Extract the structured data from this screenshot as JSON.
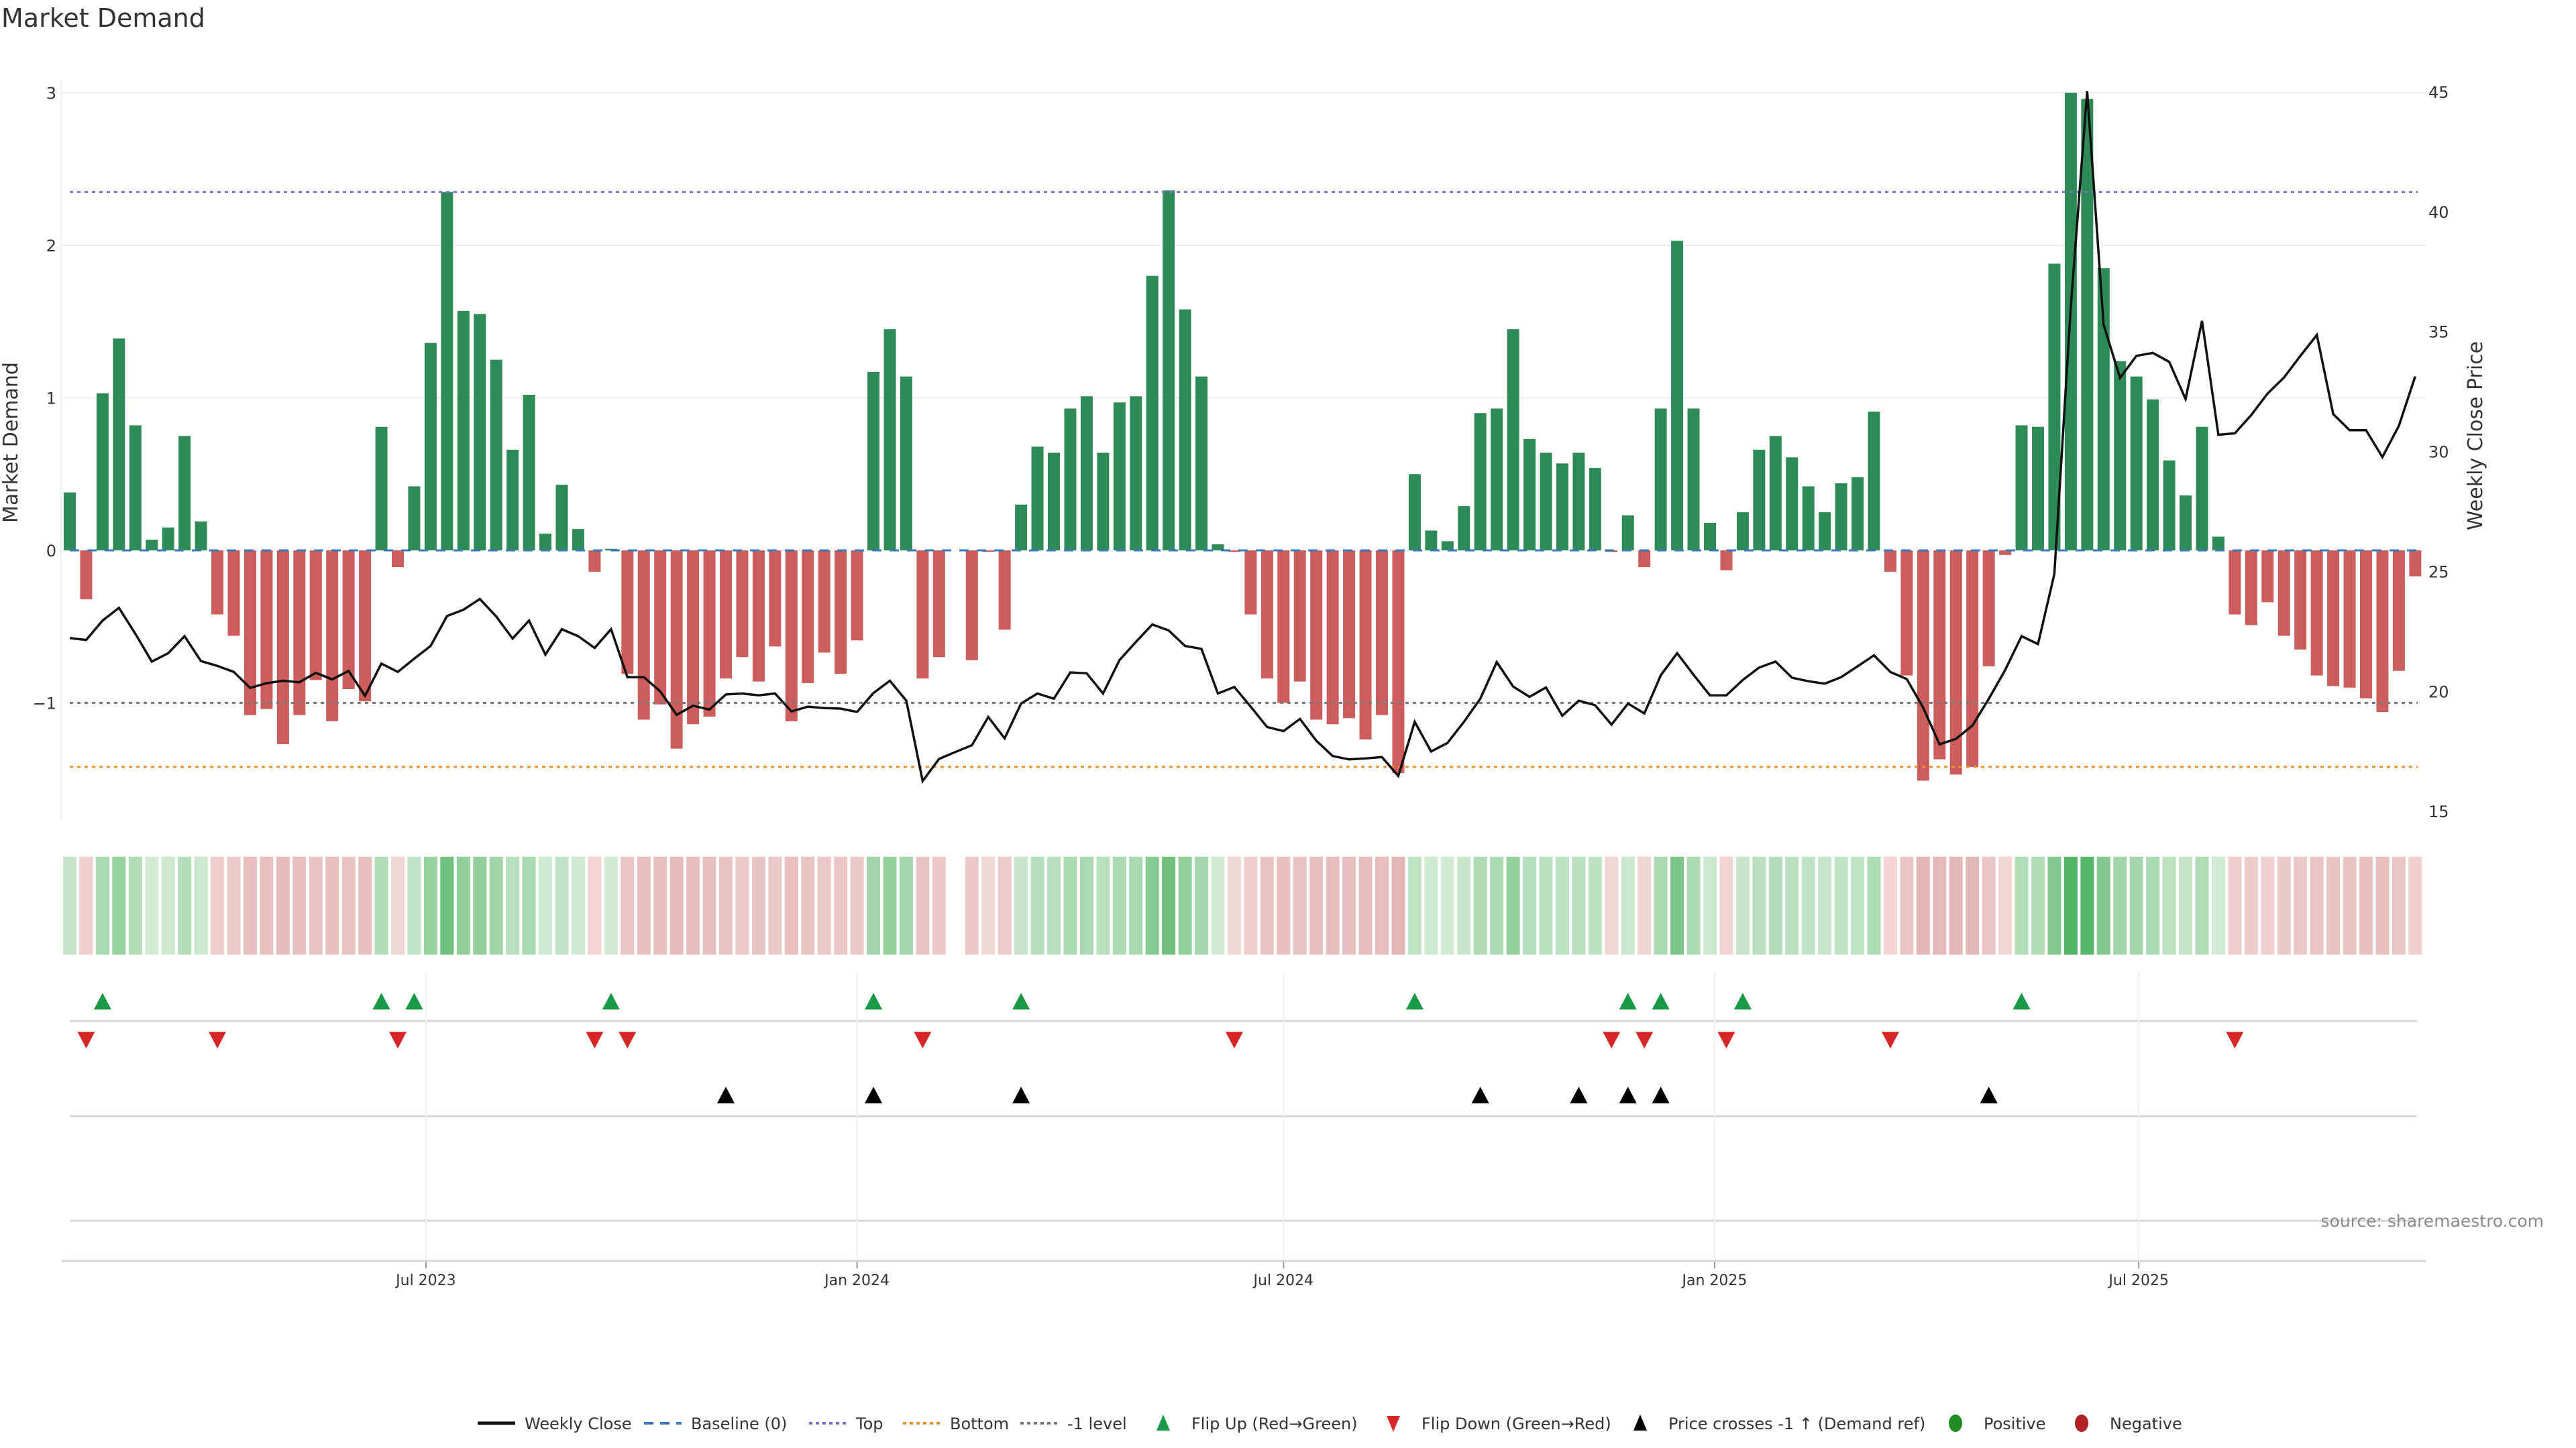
{
  "chart_data": {
    "type": "bar",
    "title": "Market Demand",
    "ylabel": "Market Demand",
    "y2label": "Weekly Close Price",
    "ylim": [
      -1.7,
      3.0
    ],
    "y2lim": [
      15,
      45
    ],
    "yticks": [
      -1,
      0,
      1,
      2,
      3
    ],
    "yticklabels": [
      "−1",
      "0",
      "1",
      "2",
      "3"
    ],
    "y2ticks": [
      15,
      20,
      25,
      30,
      35,
      40,
      45
    ],
    "y2ticklabels": [
      "15",
      "20",
      "25",
      "30",
      "35",
      "40",
      "45"
    ],
    "x_start": "2023-01-30",
    "x_freq": "weekly",
    "xticks": [
      {
        "date": "2023-07-01",
        "label": "Jul 2023"
      },
      {
        "date": "2024-01-01",
        "label": "Jan 2024"
      },
      {
        "date": "2024-07-01",
        "label": "Jul 2024"
      },
      {
        "date": "2025-01-01",
        "label": "Jan 2025"
      },
      {
        "date": "2025-07-01",
        "label": "Jul 2025"
      }
    ],
    "reference_lines": {
      "top": 2.35,
      "bottom": -1.42,
      "minus_one": -1,
      "baseline": 0
    },
    "series": [
      {
        "name": "Market Demand",
        "type": "bar",
        "values": [
          0.38,
          -0.32,
          1.03,
          1.39,
          0.82,
          0.07,
          0.15,
          0.75,
          0.19,
          -0.42,
          -0.56,
          -1.08,
          -1.04,
          -1.27,
          -1.08,
          -0.85,
          -1.12,
          -0.91,
          -0.99,
          0.81,
          -0.11,
          0.42,
          1.36,
          2.35,
          1.57,
          1.55,
          1.25,
          0.66,
          1.02,
          0.11,
          0.43,
          0.14,
          -0.14,
          0.01,
          -0.81,
          -1.11,
          -1.01,
          -1.3,
          -1.14,
          -1.09,
          -0.84,
          -0.7,
          -0.86,
          -0.63,
          -1.12,
          -0.87,
          -0.67,
          -0.81,
          -0.59,
          1.17,
          1.45,
          1.14,
          -0.84,
          -0.7,
          null,
          -0.72,
          -0.01,
          -0.52,
          0.3,
          0.68,
          0.64,
          0.93,
          1.01,
          0.64,
          0.97,
          1.01,
          1.8,
          2.36,
          1.58,
          1.14,
          0.04,
          -0.01,
          -0.42,
          -0.84,
          -1.0,
          -0.86,
          -1.11,
          -1.14,
          -1.1,
          -1.24,
          -1.08,
          -1.46,
          0.5,
          0.13,
          0.06,
          0.29,
          0.9,
          0.93,
          1.45,
          0.73,
          0.64,
          0.57,
          0.64,
          0.54,
          -0.01,
          0.23,
          -0.11,
          0.93,
          2.03,
          0.93,
          0.18,
          -0.13,
          0.25,
          0.66,
          0.75,
          0.61,
          0.42,
          0.25,
          0.44,
          0.48,
          0.91,
          -0.14,
          -0.82,
          -1.51,
          -1.37,
          -1.47,
          -1.42,
          -0.76,
          -0.03,
          0.82,
          0.81,
          1.88,
          3.0,
          2.96,
          1.85,
          1.24,
          1.14,
          0.99,
          0.59,
          0.36,
          0.81,
          0.09,
          -0.42,
          -0.49,
          -0.34,
          -0.56,
          -0.65,
          -0.82,
          -0.89,
          -0.9,
          -0.97,
          -1.06,
          -0.79,
          -0.17
        ]
      },
      {
        "name": "Weekly Close",
        "type": "line",
        "axis": "right",
        "values": [
          22.22,
          22.14,
          22.95,
          23.48,
          22.4,
          21.24,
          21.59,
          22.3,
          21.26,
          21.06,
          20.81,
          20.14,
          20.34,
          20.44,
          20.38,
          20.77,
          20.5,
          20.85,
          19.81,
          21.16,
          20.81,
          21.36,
          21.89,
          23.14,
          23.4,
          23.85,
          23.12,
          22.2,
          22.95,
          21.53,
          22.59,
          22.3,
          21.81,
          22.59,
          20.59,
          20.59,
          20.0,
          19.02,
          19.4,
          19.24,
          19.87,
          19.91,
          19.83,
          19.91,
          19.16,
          19.36,
          19.3,
          19.28,
          19.14,
          19.93,
          20.44,
          19.61,
          16.26,
          17.18,
          17.47,
          17.75,
          18.93,
          18.04,
          19.49,
          19.91,
          19.69,
          20.79,
          20.75,
          19.91,
          21.3,
          22.06,
          22.79,
          22.54,
          21.89,
          21.77,
          19.91,
          20.18,
          19.36,
          18.51,
          18.34,
          18.85,
          17.94,
          17.3,
          17.16,
          17.2,
          17.26,
          16.47,
          18.73,
          17.49,
          17.85,
          18.73,
          19.69,
          21.22,
          20.2,
          19.77,
          20.16,
          18.98,
          19.61,
          19.42,
          18.61,
          19.49,
          19.08,
          20.67,
          21.59,
          20.69,
          19.83,
          19.83,
          20.47,
          20.99,
          21.24,
          20.57,
          20.42,
          20.32,
          20.59,
          21.04,
          21.5,
          20.81,
          20.51,
          19.32,
          17.79,
          18.02,
          18.57,
          19.69,
          20.89,
          22.3,
          21.97,
          24.89,
          36.03,
          45.02,
          35.29,
          33.07,
          33.99,
          34.11,
          33.74,
          32.19,
          35.45,
          30.7,
          30.76,
          31.52,
          32.42,
          33.09,
          33.99,
          34.86,
          31.56,
          30.89,
          30.89,
          29.77,
          31.07,
          33.13
        ]
      }
    ],
    "flip_up_indices": [
      2,
      19,
      21,
      33,
      49,
      58,
      82,
      95,
      97,
      102,
      119
    ],
    "flip_down_indices": [
      1,
      9,
      20,
      32,
      34,
      52,
      71,
      94,
      96,
      101,
      111,
      132
    ],
    "price_cross_indices": [
      40,
      49,
      58,
      86,
      92,
      95,
      97,
      117
    ],
    "legend": {
      "placement": "bottom",
      "items": [
        {
          "label": "Weekly Close",
          "symbol": "line-solid",
          "color": "#111111"
        },
        {
          "label": "Baseline (0)",
          "symbol": "line-dashed",
          "color": "#3a7ab8"
        },
        {
          "label": "Top",
          "symbol": "line-dotted",
          "color": "#7b6fd0"
        },
        {
          "label": "Bottom",
          "symbol": "line-dotted",
          "color": "#e8912e"
        },
        {
          "label": "-1 level",
          "symbol": "line-dotted",
          "color": "#777777"
        },
        {
          "label": "Flip Up (Red→Green)",
          "symbol": "triangle-up",
          "color": "#1a9a48"
        },
        {
          "label": "Flip Down (Green→Red)",
          "symbol": "triangle-down",
          "color": "#d62728"
        },
        {
          "label": "Price crosses -1 ↑ (Demand ref)",
          "symbol": "triangle-up",
          "color": "#000000"
        },
        {
          "label": "Positive",
          "symbol": "circle",
          "color": "#228b22"
        },
        {
          "label": "Negative",
          "symbol": "circle",
          "color": "#b22222"
        }
      ]
    },
    "colors": {
      "positive_bar": "#2e8b57",
      "negative_bar": "#cd5c5c",
      "line": "#111111",
      "grid": "#eceef5"
    },
    "source_note": "source: sharemaestro.com"
  }
}
